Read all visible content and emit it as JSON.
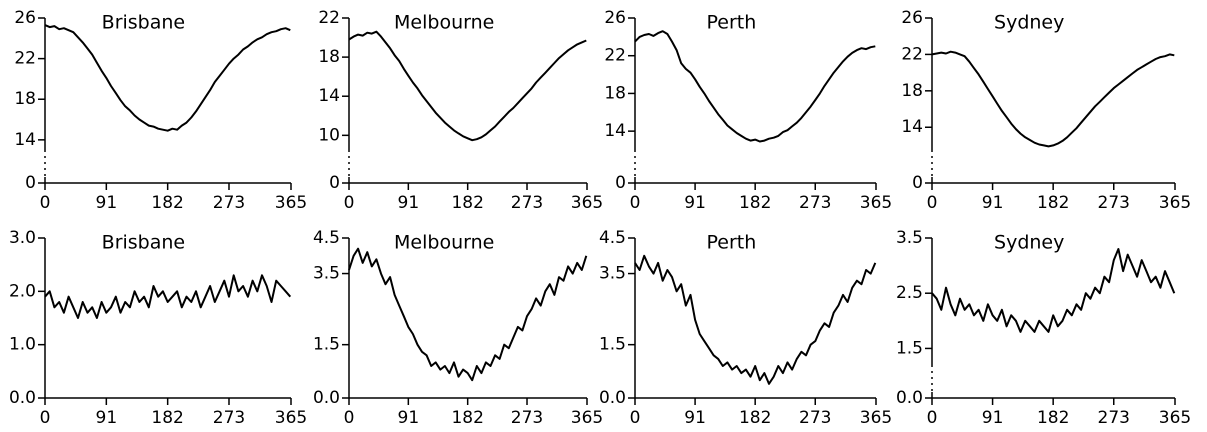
{
  "chart_data": [
    {
      "type": "line",
      "title": "Brisbane",
      "color": "#000000",
      "xlim": [
        0,
        365
      ],
      "xticks": [
        0,
        91,
        182,
        273,
        365
      ],
      "ylim": [
        0,
        26
      ],
      "ybreak": 13,
      "yticks": [
        0,
        14,
        18,
        22,
        26
      ],
      "x": [
        0,
        7,
        14,
        21,
        28,
        35,
        42,
        49,
        56,
        63,
        70,
        77,
        84,
        91,
        98,
        105,
        112,
        119,
        126,
        133,
        140,
        147,
        154,
        161,
        168,
        175,
        182,
        189,
        196,
        203,
        210,
        217,
        224,
        231,
        238,
        245,
        252,
        259,
        266,
        273,
        280,
        287,
        294,
        301,
        308,
        315,
        322,
        329,
        336,
        343,
        350,
        357,
        364
      ],
      "values": [
        25.3,
        25.1,
        25.2,
        24.9,
        25.0,
        24.8,
        24.6,
        24.1,
        23.6,
        23.0,
        22.4,
        21.6,
        20.8,
        20.1,
        19.3,
        18.6,
        17.9,
        17.3,
        16.9,
        16.4,
        16.0,
        15.7,
        15.4,
        15.3,
        15.1,
        15.0,
        14.9,
        15.1,
        15.0,
        15.4,
        15.7,
        16.2,
        16.8,
        17.5,
        18.2,
        18.9,
        19.7,
        20.3,
        20.9,
        21.5,
        22.0,
        22.4,
        22.9,
        23.2,
        23.6,
        23.9,
        24.1,
        24.4,
        24.6,
        24.7,
        24.9,
        25.0,
        24.8
      ]
    },
    {
      "type": "line",
      "title": "Melbourne",
      "color": "#000000",
      "xlim": [
        0,
        365
      ],
      "xticks": [
        0,
        91,
        182,
        273,
        365
      ],
      "ylim": [
        0,
        22
      ],
      "ybreak": 8.5,
      "yticks": [
        0,
        10,
        14,
        18,
        22
      ],
      "x": [
        0,
        7,
        14,
        21,
        28,
        35,
        42,
        49,
        56,
        63,
        70,
        77,
        84,
        91,
        98,
        105,
        112,
        119,
        126,
        133,
        140,
        147,
        154,
        161,
        168,
        175,
        182,
        189,
        196,
        203,
        210,
        217,
        224,
        231,
        238,
        245,
        252,
        259,
        266,
        273,
        280,
        287,
        294,
        301,
        308,
        315,
        322,
        329,
        336,
        343,
        350,
        357,
        364
      ],
      "values": [
        19.8,
        20.1,
        20.3,
        20.2,
        20.5,
        20.4,
        20.6,
        20.1,
        19.5,
        18.9,
        18.2,
        17.6,
        16.8,
        16.1,
        15.4,
        14.8,
        14.1,
        13.5,
        12.9,
        12.3,
        11.8,
        11.3,
        10.9,
        10.5,
        10.2,
        9.9,
        9.7,
        9.5,
        9.6,
        9.8,
        10.1,
        10.5,
        10.9,
        11.4,
        11.9,
        12.4,
        12.8,
        13.3,
        13.8,
        14.3,
        14.8,
        15.4,
        15.9,
        16.4,
        16.9,
        17.4,
        17.9,
        18.3,
        18.7,
        19.0,
        19.3,
        19.5,
        19.7
      ]
    },
    {
      "type": "line",
      "title": "Perth",
      "color": "#000000",
      "xlim": [
        0,
        365
      ],
      "xticks": [
        0,
        91,
        182,
        273,
        365
      ],
      "ylim": [
        0,
        26
      ],
      "ybreak": 12,
      "yticks": [
        0,
        14,
        18,
        22,
        26
      ],
      "x": [
        0,
        7,
        14,
        21,
        28,
        35,
        42,
        49,
        56,
        63,
        70,
        77,
        84,
        91,
        98,
        105,
        112,
        119,
        126,
        133,
        140,
        147,
        154,
        161,
        168,
        175,
        182,
        189,
        196,
        203,
        210,
        217,
        224,
        231,
        238,
        245,
        252,
        259,
        266,
        273,
        280,
        287,
        294,
        301,
        308,
        315,
        322,
        329,
        336,
        343,
        350,
        357,
        364
      ],
      "values": [
        23.5,
        24.0,
        24.2,
        24.3,
        24.1,
        24.4,
        24.6,
        24.3,
        23.5,
        22.6,
        21.2,
        20.6,
        20.2,
        19.5,
        18.7,
        18.0,
        17.2,
        16.5,
        15.8,
        15.2,
        14.6,
        14.2,
        13.8,
        13.5,
        13.2,
        13.0,
        13.1,
        12.9,
        13.0,
        13.2,
        13.3,
        13.5,
        13.9,
        14.1,
        14.5,
        14.9,
        15.4,
        16.0,
        16.6,
        17.3,
        18.0,
        18.8,
        19.5,
        20.2,
        20.8,
        21.4,
        21.9,
        22.3,
        22.6,
        22.8,
        22.7,
        22.9,
        23.0
      ]
    },
    {
      "type": "line",
      "title": "Sydney",
      "color": "#000000",
      "xlim": [
        0,
        365
      ],
      "xticks": [
        0,
        91,
        182,
        273,
        365
      ],
      "ylim": [
        0,
        26
      ],
      "ybreak": 11.5,
      "yticks": [
        0,
        14,
        18,
        22,
        26
      ],
      "x": [
        0,
        7,
        14,
        21,
        28,
        35,
        42,
        49,
        56,
        63,
        70,
        77,
        84,
        91,
        98,
        105,
        112,
        119,
        126,
        133,
        140,
        147,
        154,
        161,
        168,
        175,
        182,
        189,
        196,
        203,
        210,
        217,
        224,
        231,
        238,
        245,
        252,
        259,
        266,
        273,
        280,
        287,
        294,
        301,
        308,
        315,
        322,
        329,
        336,
        343,
        350,
        357,
        364
      ],
      "values": [
        22.0,
        22.1,
        22.2,
        22.1,
        22.3,
        22.2,
        22.0,
        21.8,
        21.2,
        20.5,
        19.8,
        19.0,
        18.2,
        17.4,
        16.6,
        15.8,
        15.1,
        14.4,
        13.8,
        13.3,
        12.9,
        12.6,
        12.3,
        12.1,
        12.0,
        11.9,
        12.0,
        12.2,
        12.5,
        12.9,
        13.4,
        13.9,
        14.5,
        15.1,
        15.7,
        16.3,
        16.8,
        17.3,
        17.8,
        18.3,
        18.7,
        19.1,
        19.5,
        19.9,
        20.3,
        20.6,
        20.9,
        21.2,
        21.5,
        21.7,
        21.8,
        22.0,
        21.9
      ]
    },
    {
      "type": "line",
      "title": "Brisbane",
      "color": "#000000",
      "xlim": [
        0,
        365
      ],
      "xticks": [
        0,
        91,
        182,
        273,
        365
      ],
      "ylim": [
        0,
        3
      ],
      "yticks": [
        {
          "value": 0,
          "label": "0.0"
        },
        {
          "value": 1,
          "label": "1.0"
        },
        {
          "value": 2,
          "label": "2.0"
        },
        {
          "value": 3,
          "label": "3.0"
        }
      ],
      "x": [
        0,
        7,
        14,
        21,
        28,
        35,
        42,
        49,
        56,
        63,
        70,
        77,
        84,
        91,
        98,
        105,
        112,
        119,
        126,
        133,
        140,
        147,
        154,
        161,
        168,
        175,
        182,
        189,
        196,
        203,
        210,
        217,
        224,
        231,
        238,
        245,
        252,
        259,
        266,
        273,
        280,
        287,
        294,
        301,
        308,
        315,
        322,
        329,
        336,
        343,
        350,
        357,
        364
      ],
      "values": [
        1.9,
        2.0,
        1.7,
        1.8,
        1.6,
        1.9,
        1.7,
        1.5,
        1.8,
        1.6,
        1.7,
        1.5,
        1.8,
        1.6,
        1.7,
        1.9,
        1.6,
        1.8,
        1.7,
        2.0,
        1.8,
        1.9,
        1.7,
        2.1,
        1.9,
        2.0,
        1.8,
        1.9,
        2.0,
        1.7,
        1.9,
        1.8,
        2.0,
        1.7,
        1.9,
        2.1,
        1.8,
        2.0,
        2.2,
        1.9,
        2.3,
        2.0,
        2.1,
        1.9,
        2.2,
        2.0,
        2.3,
        2.1,
        1.8,
        2.2,
        2.1,
        2.0,
        1.9
      ]
    },
    {
      "type": "line",
      "title": "Melbourne",
      "color": "#000000",
      "xlim": [
        0,
        365
      ],
      "xticks": [
        0,
        91,
        182,
        273,
        365
      ],
      "ylim": [
        0,
        4.5
      ],
      "yticks": [
        {
          "value": 0,
          "label": "0.0"
        },
        1.5,
        3.5,
        4.5
      ],
      "x": [
        0,
        7,
        14,
        21,
        28,
        35,
        42,
        49,
        56,
        63,
        70,
        77,
        84,
        91,
        98,
        105,
        112,
        119,
        126,
        133,
        140,
        147,
        154,
        161,
        168,
        175,
        182,
        189,
        196,
        203,
        210,
        217,
        224,
        231,
        238,
        245,
        252,
        259,
        266,
        273,
        280,
        287,
        294,
        301,
        308,
        315,
        322,
        329,
        336,
        343,
        350,
        357,
        364
      ],
      "values": [
        3.6,
        4.0,
        4.2,
        3.8,
        4.1,
        3.7,
        3.9,
        3.5,
        3.2,
        3.4,
        2.9,
        2.6,
        2.3,
        2.0,
        1.8,
        1.5,
        1.3,
        1.2,
        0.9,
        1.0,
        0.8,
        0.9,
        0.7,
        1.0,
        0.6,
        0.8,
        0.7,
        0.5,
        0.9,
        0.7,
        1.0,
        0.9,
        1.2,
        1.1,
        1.5,
        1.4,
        1.7,
        2.0,
        1.9,
        2.3,
        2.5,
        2.8,
        2.6,
        3.0,
        3.2,
        2.9,
        3.4,
        3.3,
        3.7,
        3.5,
        3.8,
        3.6,
        4.0
      ]
    },
    {
      "type": "line",
      "title": "Perth",
      "color": "#000000",
      "xlim": [
        0,
        365
      ],
      "xticks": [
        0,
        91,
        182,
        273,
        365
      ],
      "ylim": [
        0,
        4.5
      ],
      "yticks": [
        {
          "value": 0,
          "label": "0.0"
        },
        1.5,
        3.5,
        4.5
      ],
      "x": [
        0,
        7,
        14,
        21,
        28,
        35,
        42,
        49,
        56,
        63,
        70,
        77,
        84,
        91,
        98,
        105,
        112,
        119,
        126,
        133,
        140,
        147,
        154,
        161,
        168,
        175,
        182,
        189,
        196,
        203,
        210,
        217,
        224,
        231,
        238,
        245,
        252,
        259,
        266,
        273,
        280,
        287,
        294,
        301,
        308,
        315,
        322,
        329,
        336,
        343,
        350,
        357,
        364
      ],
      "values": [
        3.8,
        3.6,
        4.0,
        3.7,
        3.5,
        3.8,
        3.3,
        3.6,
        3.4,
        3.0,
        3.2,
        2.6,
        2.9,
        2.2,
        1.8,
        1.6,
        1.4,
        1.2,
        1.1,
        0.9,
        1.0,
        0.8,
        0.9,
        0.7,
        0.8,
        0.6,
        0.9,
        0.5,
        0.7,
        0.4,
        0.6,
        0.9,
        0.7,
        1.0,
        0.8,
        1.1,
        1.3,
        1.2,
        1.5,
        1.6,
        1.9,
        2.1,
        2.0,
        2.4,
        2.6,
        2.9,
        2.7,
        3.1,
        3.3,
        3.2,
        3.6,
        3.5,
        3.8
      ]
    },
    {
      "type": "line",
      "title": "Sydney",
      "color": "#000000",
      "xlim": [
        0,
        365
      ],
      "xticks": [
        0,
        91,
        182,
        273,
        365
      ],
      "ylim": [
        0,
        3.5
      ],
      "ybreak": 1.2,
      "yticks": [
        {
          "value": 0,
          "label": "0.0"
        },
        1.5,
        2.5,
        3.5
      ],
      "x": [
        0,
        7,
        14,
        21,
        28,
        35,
        42,
        49,
        56,
        63,
        70,
        77,
        84,
        91,
        98,
        105,
        112,
        119,
        126,
        133,
        140,
        147,
        154,
        161,
        168,
        175,
        182,
        189,
        196,
        203,
        210,
        217,
        224,
        231,
        238,
        245,
        252,
        259,
        266,
        273,
        280,
        287,
        294,
        301,
        308,
        315,
        322,
        329,
        336,
        343,
        350,
        357,
        364
      ],
      "values": [
        2.5,
        2.4,
        2.2,
        2.6,
        2.3,
        2.1,
        2.4,
        2.2,
        2.3,
        2.1,
        2.2,
        2.0,
        2.3,
        2.1,
        2.0,
        2.2,
        1.9,
        2.1,
        2.0,
        1.8,
        2.0,
        1.9,
        1.8,
        2.0,
        1.9,
        1.8,
        2.1,
        1.9,
        2.0,
        2.2,
        2.1,
        2.3,
        2.2,
        2.5,
        2.4,
        2.6,
        2.5,
        2.8,
        2.7,
        3.1,
        3.3,
        2.9,
        3.2,
        3.0,
        2.8,
        3.1,
        2.9,
        2.7,
        2.8,
        2.6,
        2.9,
        2.7,
        2.5
      ]
    }
  ]
}
